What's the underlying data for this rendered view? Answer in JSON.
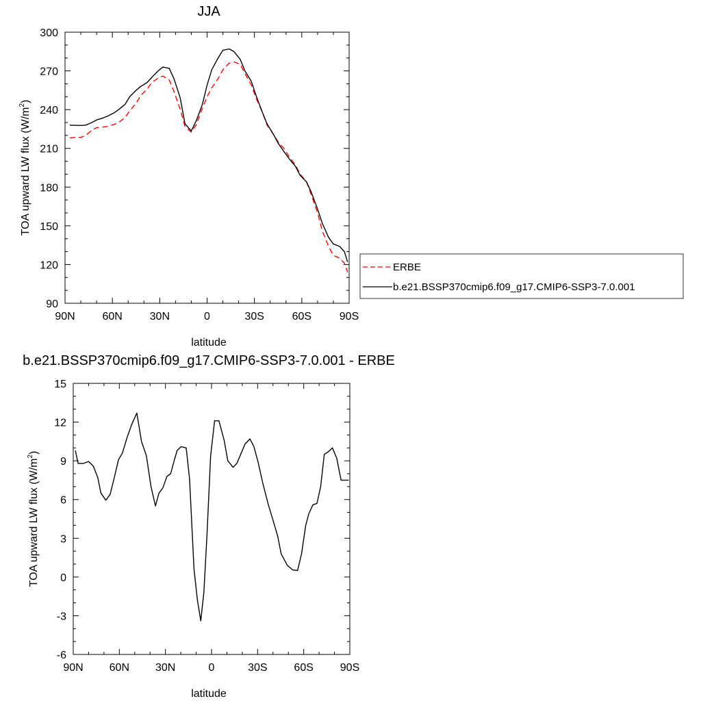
{
  "chart_data": [
    {
      "type": "line",
      "title": "JJA",
      "xlabel": "latitude",
      "ylabel": "TOA upward LW flux (W/m",
      "ylabel_sup": "2",
      "ylabel_end": ")",
      "xlim": [
        -90,
        90
      ],
      "ylim": [
        90,
        300
      ],
      "xticks": [
        -90,
        -60,
        -30,
        0,
        30,
        60,
        90
      ],
      "xtick_labels": [
        "90N",
        "60N",
        "30N",
        "0",
        "30S",
        "60S",
        "90S"
      ],
      "yticks": [
        90,
        120,
        150,
        180,
        210,
        240,
        270,
        300
      ],
      "ytick_labels": [
        "90",
        "120",
        "150",
        "180",
        "210",
        "240",
        "270",
        "300"
      ],
      "grid": false,
      "legend_position": "outside-right",
      "series": [
        {
          "name": "ERBE",
          "color": "#ff0000",
          "dash": "dashed",
          "x": [
            -87,
            -84,
            -80,
            -77,
            -73,
            -70,
            -66,
            -63,
            -59,
            -56,
            -52,
            -49,
            -45,
            -42,
            -38,
            -35,
            -31,
            -28,
            -24,
            -21,
            -17,
            -14,
            -10,
            -7,
            -3,
            0,
            3,
            7,
            10,
            14,
            17,
            21,
            24,
            28,
            31,
            35,
            38,
            42,
            45,
            49,
            52,
            56,
            59,
            63,
            66,
            70,
            73,
            77,
            80,
            84,
            87,
            89
          ],
          "y": [
            218,
            218.5,
            218.5,
            220,
            224,
            226,
            226.5,
            227,
            228.5,
            230,
            234,
            239,
            245,
            251,
            256,
            261,
            264.5,
            266,
            263,
            254,
            240,
            227,
            222.5,
            228,
            241,
            250,
            257,
            264,
            271,
            276,
            277,
            275,
            268,
            259,
            249,
            238,
            228,
            221,
            215,
            209.5,
            203.5,
            197,
            190,
            184,
            174,
            160,
            146,
            134,
            127,
            125,
            121,
            114
          ]
        },
        {
          "name": "b.e21.BSSP370cmip6.f09_g17.CMIP6-SSP3-7.0.001",
          "color": "#000000",
          "dash": "solid",
          "x": [
            -87,
            -84,
            -80,
            -77,
            -73,
            -70,
            -66,
            -63,
            -59,
            -56,
            -52,
            -49,
            -45,
            -42,
            -38,
            -35,
            -31,
            -28,
            -24,
            -21,
            -17,
            -14,
            -10,
            -7,
            -3,
            0,
            3,
            7,
            10,
            14,
            17,
            21,
            24,
            28,
            31,
            35,
            38,
            42,
            45,
            49,
            52,
            56,
            59,
            63,
            66,
            70,
            73,
            77,
            80,
            84,
            87,
            89
          ],
          "y": [
            228,
            227.8,
            227.7,
            228,
            230,
            232,
            233.5,
            235,
            237.5,
            240,
            244,
            250,
            255,
            258,
            261,
            265,
            270,
            273,
            272,
            264,
            249,
            229,
            223.5,
            231,
            244,
            259,
            271,
            280,
            286,
            287,
            285,
            279,
            270,
            262,
            251,
            238,
            229,
            221,
            214,
            207,
            202,
            196,
            189,
            184,
            176,
            163,
            152,
            141,
            136,
            134,
            130,
            122
          ]
        }
      ]
    },
    {
      "type": "line",
      "title": "b.e21.BSSP370cmip6.f09_g17.CMIP6-SSP3-7.0.001 - ERBE",
      "xlabel": "latitude",
      "ylabel": "TOA upward LW flux (W/m",
      "ylabel_sup": "2",
      "ylabel_end": ")",
      "xlim": [
        -90,
        90
      ],
      "ylim": [
        -6,
        15
      ],
      "xticks": [
        -90,
        -60,
        -30,
        0,
        30,
        60,
        90
      ],
      "xtick_labels": [
        "90N",
        "60N",
        "30N",
        "0",
        "30S",
        "60S",
        "90S"
      ],
      "yticks": [
        -6,
        -3,
        0,
        3,
        6,
        9,
        12,
        15
      ],
      "ytick_labels": [
        "-6",
        "-3",
        "0",
        "3",
        "6",
        "9",
        "12",
        "15"
      ],
      "grid": false,
      "series": [
        {
          "color": "#000000",
          "dash": "solid",
          "x": [
            -88.6,
            -86.9,
            -83.3,
            -80,
            -77,
            -74,
            -72,
            -68.8,
            -66,
            -63.5,
            -60.5,
            -58,
            -55,
            -52,
            -48.6,
            -45.6,
            -42.4,
            -39.4,
            -36.5,
            -34.2,
            -31.7,
            -29,
            -26.6,
            -24.8,
            -22.4,
            -19.8,
            -16.5,
            -14.3,
            -11.4,
            -9.2,
            -7,
            -5,
            -3,
            -0.6,
            2,
            4.8,
            8.2,
            10.6,
            14,
            16.5,
            19,
            21.8,
            25,
            27.6,
            30.3,
            33.5,
            37,
            40,
            43,
            45.3,
            49.3,
            52.8,
            56,
            58.6,
            61.3,
            63.3,
            66,
            68.6,
            71,
            73.4,
            76,
            78.7,
            81.5,
            84.3,
            87,
            89.3
          ],
          "y": [
            9.8,
            8.8,
            8.8,
            8.95,
            8.6,
            7.7,
            6.5,
            5.95,
            6.4,
            7.6,
            9.1,
            9.6,
            10.8,
            11.8,
            12.7,
            10.5,
            9.4,
            7.0,
            5.5,
            6.5,
            6.9,
            7.8,
            8.0,
            8.8,
            9.8,
            10.1,
            10.0,
            7.6,
            0.6,
            -1.8,
            -3.4,
            -1.2,
            3.2,
            9.4,
            12.1,
            12.1,
            10.6,
            9.0,
            8.5,
            8.8,
            9.5,
            10.3,
            10.7,
            10.1,
            8.9,
            7.2,
            5.6,
            4.4,
            3.2,
            1.8,
            0.9,
            0.55,
            0.5,
            1.8,
            4.0,
            4.9,
            5.6,
            5.7,
            7.0,
            9.5,
            9.7,
            10.0,
            9.2,
            7.5,
            7.5,
            7.5
          ]
        }
      ]
    }
  ],
  "legend": {
    "items": [
      {
        "label": "ERBE",
        "color": "#ff0000",
        "dash": "dashed"
      },
      {
        "label": "b.e21.BSSP370cmip6.f09_g17.CMIP6-SSP3-7.0.001",
        "color": "#000000",
        "dash": "solid"
      }
    ]
  }
}
